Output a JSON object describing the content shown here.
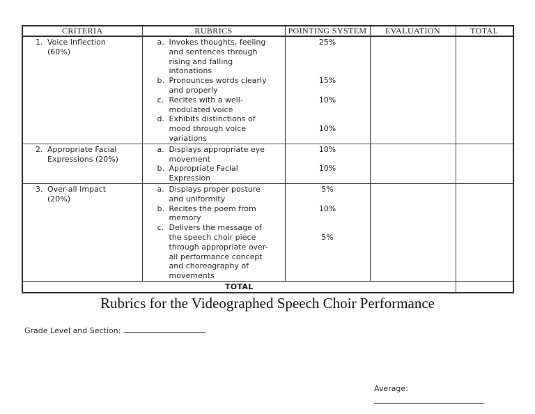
{
  "title": "Rubrics for the Videographed Speech Choir Performance",
  "table": {
    "headers": [
      "CRITERIA",
      "RUBRICS",
      "POINTING SYSTEM",
      "EVALUATION",
      "TOTAL"
    ],
    "groups": [
      {
        "criteria_no": "1.",
        "criteria_lines": [
          "Voice Inflection",
          "(60%)"
        ],
        "items": [
          {
            "label": "a.",
            "lines": [
              "Invokes thoughts, feeling",
              "and sentences through",
              "rising and falling",
              "intonations"
            ],
            "points": "25%",
            "points_line": 1
          },
          {
            "label": "b.",
            "lines": [
              "Pronounces words clearly",
              "and properly"
            ],
            "points": "15%",
            "points_line": 1
          },
          {
            "label": "c.",
            "lines": [
              "Recites with a well-",
              "modulated voice"
            ],
            "points": "10%",
            "points_line": 1
          },
          {
            "label": "d.",
            "lines": [
              "Exhibits distinctions of",
              "mood through voice",
              "variations"
            ],
            "points": "10%",
            "points_line": 2
          }
        ]
      },
      {
        "criteria_no": "2.",
        "criteria_lines": [
          "Appropriate Facial",
          "Expressions (20%)"
        ],
        "items": [
          {
            "label": "a.",
            "lines": [
              "Displays appropriate eye",
              "movement"
            ],
            "points": "10%",
            "points_line": 1
          },
          {
            "label": "b.",
            "lines": [
              "Appropriate Facial",
              "Expression"
            ],
            "points": "10%",
            "points_line": 1
          }
        ]
      },
      {
        "criteria_no": "3.",
        "criteria_lines": [
          "Over-all Impact",
          "(20%)"
        ],
        "items": [
          {
            "label": "a.",
            "lines": [
              "Displays proper posture",
              "and uniformity"
            ],
            "points": "5%",
            "points_line": 1
          },
          {
            "label": "b.",
            "lines": [
              "Recites the poem from",
              "memory"
            ],
            "points": "10%",
            "points_line": 1
          },
          {
            "label": "c.",
            "lines": [
              "Delivers the message of",
              "the speech choir piece",
              "through appropriate over-",
              "all performance concept",
              "and choreography of",
              "movements"
            ],
            "points": "5%",
            "points_line": 2
          }
        ]
      }
    ],
    "footer_label": "TOTAL"
  },
  "fields": {
    "grade_label": "Grade Level and Section:",
    "grade_value": "",
    "average_label": "Average:",
    "average_value": ""
  }
}
